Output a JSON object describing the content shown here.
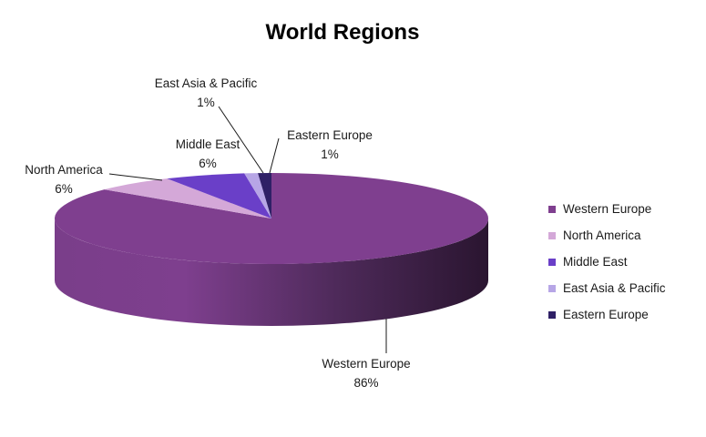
{
  "chart_data": {
    "type": "pie",
    "title": "World Regions",
    "categories": [
      "Western Europe",
      "North America",
      "Middle East",
      "East Asia & Pacific",
      "Eastern Europe"
    ],
    "values": [
      86,
      6,
      6,
      1,
      1
    ],
    "value_labels": [
      "86%",
      "6%",
      "6%",
      "1%",
      "1%"
    ],
    "colors": [
      "#7f3f8f",
      "#d4a8d8",
      "#6a3fc8",
      "#b7a6e6",
      "#2f2066"
    ],
    "style": "3d",
    "legend": {
      "position": "right"
    }
  }
}
